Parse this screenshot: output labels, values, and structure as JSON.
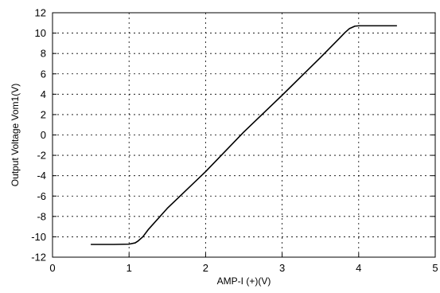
{
  "chart_data": {
    "type": "line",
    "title": "",
    "xlabel": "AMP-I (+)(V)",
    "ylabel": "Output Voltage Vom1(V)",
    "xlim": [
      0,
      5
    ],
    "ylim": [
      -12,
      12
    ],
    "xticks": [
      0,
      1,
      2,
      3,
      4,
      5
    ],
    "yticks": [
      -12,
      -10,
      -8,
      -6,
      -4,
      -2,
      0,
      2,
      4,
      6,
      8,
      10,
      12
    ],
    "grid": "dashed",
    "series": [
      {
        "x": [
          0.5,
          0.8,
          1.0,
          1.08,
          1.12,
          1.18,
          1.25,
          1.5,
          2.0,
          2.5,
          3.0,
          3.5,
          3.75,
          3.82,
          3.88,
          3.95,
          4.0,
          4.5
        ],
        "y": [
          -10.75,
          -10.75,
          -10.72,
          -10.6,
          -10.4,
          -10.0,
          -9.3,
          -7.2,
          -3.6,
          0.3,
          3.9,
          7.6,
          9.5,
          10.05,
          10.45,
          10.68,
          10.72,
          10.72
        ]
      }
    ],
    "colors": {
      "line": "#000000",
      "grid": "#000000",
      "frame": "#000000"
    }
  }
}
